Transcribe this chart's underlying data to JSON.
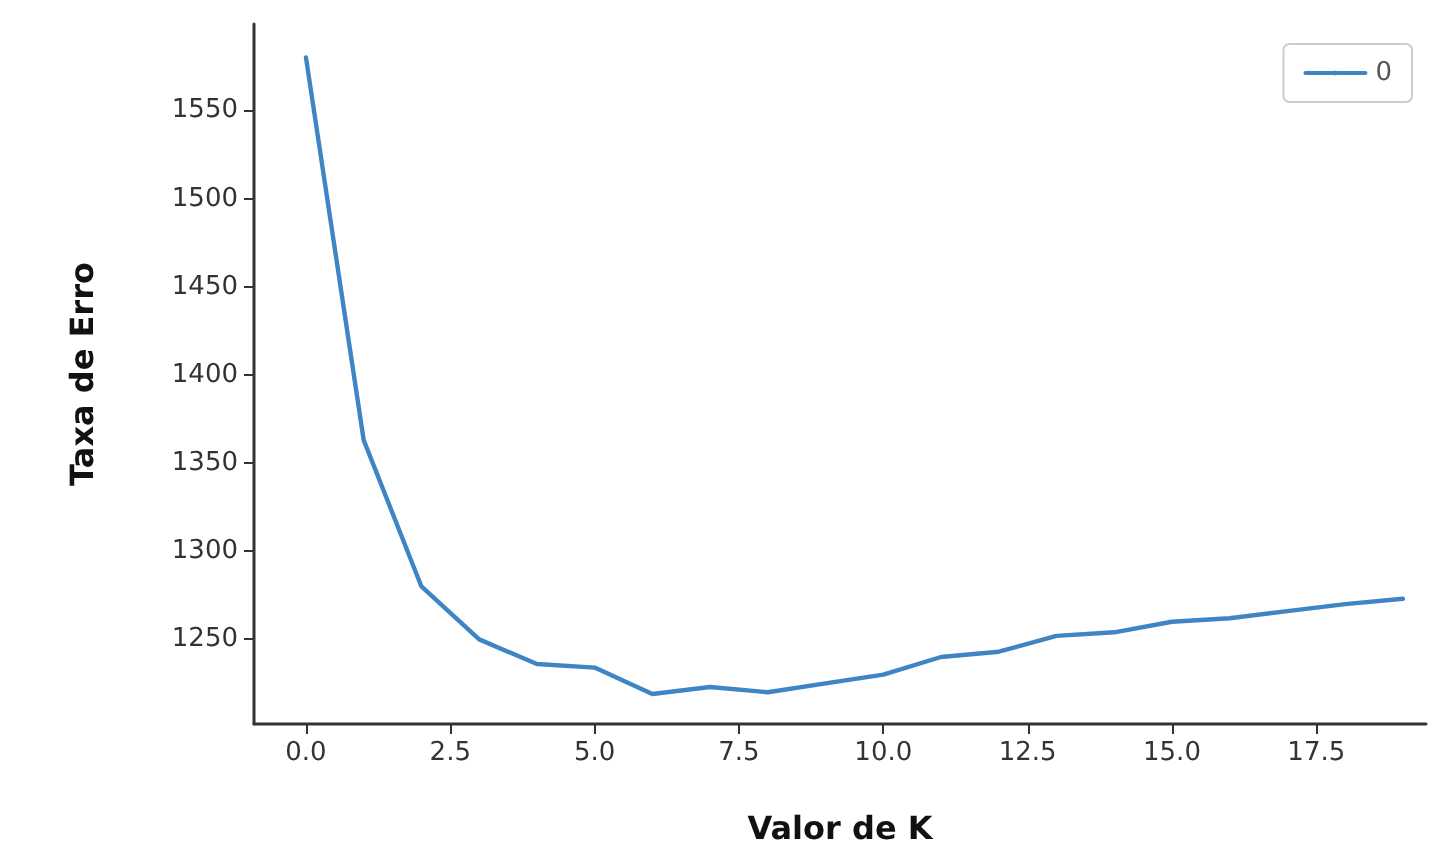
{
  "chart_data": {
    "type": "line",
    "xlabel": "Valor de K",
    "ylabel": "Taxa de Erro",
    "x": [
      0,
      1,
      2,
      3,
      4,
      5,
      6,
      7,
      8,
      9,
      10,
      11,
      12,
      13,
      14,
      15,
      16,
      17,
      18,
      19
    ],
    "series": [
      {
        "name": "0",
        "color": "#3f85c3",
        "values": [
          1580,
          1363,
          1280,
          1250,
          1236,
          1234,
          1219,
          1223,
          1220,
          1225,
          1230,
          1240,
          1243,
          1252,
          1254,
          1260,
          1262,
          1266,
          1270,
          1273
        ]
      }
    ],
    "xlim": [
      -0.9,
      19.4
    ],
    "xticks": [
      {
        "value": 0,
        "label": "0.0"
      },
      {
        "value": 2.5,
        "label": "2.5"
      },
      {
        "value": 5,
        "label": "5.0"
      },
      {
        "value": 7.5,
        "label": "7.5"
      },
      {
        "value": 10,
        "label": "10.0"
      },
      {
        "value": 12.5,
        "label": "12.5"
      },
      {
        "value": 15,
        "label": "15.0"
      },
      {
        "value": 17.5,
        "label": "17.5"
      }
    ],
    "ylim": [
      1202,
      1599
    ],
    "yticks": [
      1250,
      1300,
      1350,
      1400,
      1450,
      1500,
      1550
    ],
    "grid": false,
    "legend": "top right",
    "marker": "none",
    "line_style": "solid"
  }
}
